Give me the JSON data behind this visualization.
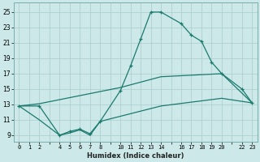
{
  "xlabel": "Humidex (Indice chaleur)",
  "bg_color": "#cce8e8",
  "grid_color": "#aacccc",
  "line_color": "#1a7a6e",
  "xtick_positions": [
    0,
    1,
    2,
    3,
    4,
    5,
    6,
    7,
    8,
    9,
    10,
    11,
    12,
    13,
    14,
    15,
    16,
    17,
    18,
    19,
    20,
    21,
    22,
    23
  ],
  "xtick_labels": [
    "0",
    "1",
    "2",
    "",
    "4",
    "5",
    "6",
    "7",
    "8",
    "",
    "10",
    "11",
    "12",
    "13",
    "14",
    "",
    "16",
    "17",
    "18",
    "19",
    "20",
    "",
    "22",
    "23"
  ],
  "ytick_positions": [
    9,
    11,
    13,
    15,
    17,
    19,
    21,
    23,
    25
  ],
  "ytick_labels": [
    "9",
    "11",
    "13",
    "15",
    "17",
    "19",
    "21",
    "23",
    "25"
  ],
  "ylim": [
    8.2,
    26.2
  ],
  "xlim": [
    -0.5,
    23.5
  ],
  "line1_x": [
    0,
    2,
    4,
    5,
    6,
    7,
    8,
    10,
    11,
    12,
    13,
    14,
    16,
    17,
    18,
    19,
    20,
    22,
    23
  ],
  "line1_y": [
    12.8,
    12.8,
    9.0,
    9.5,
    9.8,
    9.2,
    10.8,
    14.8,
    18.0,
    21.5,
    25.0,
    25.0,
    23.5,
    22.0,
    21.2,
    18.5,
    17.0,
    15.0,
    13.2
  ],
  "line2_x": [
    0,
    2,
    10,
    14,
    20,
    23
  ],
  "line2_y": [
    12.8,
    13.1,
    15.2,
    16.6,
    17.0,
    13.2
  ],
  "line3_x": [
    0,
    2,
    4,
    5,
    6,
    7,
    8,
    14,
    20,
    23
  ],
  "line3_y": [
    12.8,
    11.0,
    9.0,
    9.3,
    9.7,
    9.0,
    10.8,
    12.8,
    13.8,
    13.2
  ]
}
